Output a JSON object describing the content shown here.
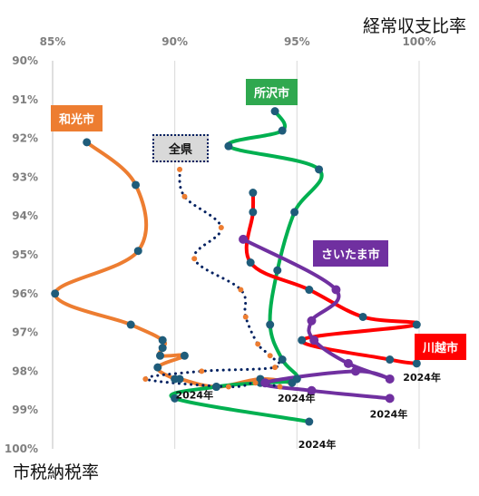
{
  "chart_data": {
    "type": "line",
    "title": "",
    "xlabel": "経常収支比率",
    "ylabel": "市税納税率",
    "x_ticks": [
      "85%",
      "90%",
      "95%",
      "100%"
    ],
    "y_ticks": [
      "90%",
      "91%",
      "92%",
      "93%",
      "94%",
      "95%",
      "96%",
      "97%",
      "98%",
      "99%",
      "100%"
    ],
    "xlim": [
      85,
      100
    ],
    "ylim": [
      90,
      100
    ],
    "grid": "vertical",
    "series": [
      {
        "name": "和光市",
        "color": "#ED7D31",
        "dot_color": "#1F5C7A",
        "style": "solid",
        "points": [
          [
            86.4,
            92.1
          ],
          [
            88.4,
            93.2
          ],
          [
            88.5,
            94.9
          ],
          [
            85.1,
            96.0
          ],
          [
            88.2,
            96.8
          ],
          [
            89.5,
            97.2
          ],
          [
            89.5,
            97.4
          ],
          [
            89.4,
            97.6
          ],
          [
            90.4,
            97.6
          ],
          [
            89.3,
            97.9
          ],
          [
            90.0,
            98.2
          ],
          [
            90.2,
            98.2
          ],
          [
            91.7,
            98.4
          ],
          [
            93.5,
            98.2
          ],
          [
            94.8,
            98.3
          ]
        ],
        "year_label": "2024年"
      },
      {
        "name": "所沢市",
        "color": "#00B050",
        "dot_color": "#1F5C7A",
        "style": "solid",
        "points": [
          [
            94.1,
            91.3
          ],
          [
            94.4,
            91.8
          ],
          [
            92.2,
            92.2
          ],
          [
            95.9,
            92.8
          ],
          [
            94.9,
            93.9
          ],
          [
            94.2,
            95.4
          ],
          [
            93.9,
            96.8
          ],
          [
            94.4,
            97.7
          ],
          [
            95.0,
            98.2
          ],
          [
            93.5,
            98.3
          ],
          [
            91.7,
            98.4
          ],
          [
            90.0,
            98.7
          ],
          [
            95.5,
            99.3
          ]
        ],
        "year_label": "2024年"
      },
      {
        "name": "川越市",
        "color": "#FF0000",
        "dot_color": "#1F5C7A",
        "style": "solid",
        "points": [
          [
            93.2,
            93.4
          ],
          [
            93.2,
            93.9
          ],
          [
            93.1,
            95.2
          ],
          [
            95.5,
            95.9
          ],
          [
            97.7,
            96.6
          ],
          [
            99.9,
            96.8
          ],
          [
            95.2,
            97.2
          ],
          [
            98.8,
            97.7
          ],
          [
            99.9,
            97.8
          ]
        ],
        "year_label": "2024年"
      },
      {
        "name": "さいたま市",
        "color": "#7030A0",
        "dot_color": "#7030A0",
        "style": "solid",
        "points": [
          [
            92.8,
            94.6
          ],
          [
            96.6,
            95.9
          ],
          [
            95.6,
            96.7
          ],
          [
            95.7,
            97.2
          ],
          [
            97.1,
            97.8
          ],
          [
            98.8,
            98.2
          ],
          [
            97.4,
            98.0
          ],
          [
            93.7,
            98.3
          ],
          [
            95.6,
            98.5
          ],
          [
            98.8,
            98.7
          ]
        ],
        "year_label": "2024年"
      },
      {
        "name": "全県",
        "color": "#002060",
        "dot_color": "#ED7D31",
        "style": "dotted",
        "points": [
          [
            90.2,
            92.8
          ],
          [
            90.4,
            93.5
          ],
          [
            91.9,
            94.3
          ],
          [
            90.8,
            95.1
          ],
          [
            92.7,
            95.9
          ],
          [
            92.9,
            96.6
          ],
          [
            93.4,
            97.3
          ],
          [
            93.9,
            97.6
          ],
          [
            94.1,
            97.9
          ],
          [
            91.1,
            98.0
          ],
          [
            88.8,
            98.2
          ],
          [
            92.2,
            98.4
          ],
          [
            93.3,
            98.3
          ],
          [
            94.3,
            98.4
          ]
        ],
        "year_label": "2024年"
      }
    ]
  }
}
